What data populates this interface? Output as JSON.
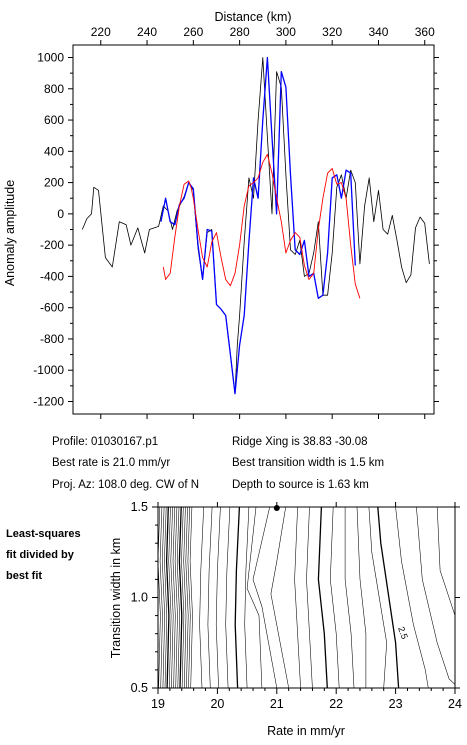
{
  "chart_data": [
    {
      "type": "line",
      "xlabel": "Distance (km)",
      "ylabel": "Anomaly amplitude",
      "xlim": [
        208,
        364
      ],
      "ylim": [
        -1280,
        1080
      ],
      "xticks": [
        220,
        240,
        260,
        280,
        300,
        320,
        340,
        360
      ],
      "yticks": [
        1000,
        800,
        600,
        400,
        200,
        0,
        -200,
        -400,
        -600,
        -800,
        -1000,
        -1200
      ],
      "x_axis_position": "top",
      "grid": false,
      "series": [
        {
          "name": "",
          "color": "#000000",
          "x": [
            212,
            214,
            216,
            217,
            219,
            222,
            225,
            228,
            231,
            233,
            236,
            239,
            241,
            245,
            247,
            249,
            251,
            253,
            255,
            256,
            258,
            260,
            262,
            264,
            266,
            268,
            270,
            272,
            274,
            276,
            278,
            279,
            280,
            282,
            284,
            286,
            288,
            290,
            292,
            294,
            296,
            298,
            300,
            302,
            304,
            306,
            308,
            310,
            312,
            314,
            316,
            318,
            320,
            322,
            324,
            326,
            328,
            330,
            332,
            334,
            336,
            338,
            340,
            342,
            344,
            346,
            348,
            350,
            352,
            354,
            356,
            358,
            360,
            362
          ],
          "y": [
            -100,
            -30,
            0,
            170,
            150,
            -280,
            -340,
            -50,
            -70,
            -200,
            -90,
            -250,
            -100,
            -80,
            50,
            20,
            -100,
            20,
            80,
            110,
            200,
            150,
            -220,
            -420,
            -120,
            -100,
            -580,
            -610,
            -650,
            -900,
            -1150,
            -840,
            -650,
            -180,
            230,
            100,
            600,
            1000,
            490,
            0,
            910,
            810,
            250,
            -230,
            -260,
            -170,
            -400,
            -380,
            -250,
            -50,
            -520,
            -520,
            -250,
            170,
            250,
            100,
            280,
            200,
            -320,
            50,
            230,
            -50,
            150,
            -100,
            -130,
            -10,
            -170,
            -340,
            -440,
            -390,
            -90,
            -20,
            -60,
            -320
          ]
        },
        {
          "name": "",
          "color": "#0000ff",
          "x": [
            246,
            248,
            250,
            252,
            254,
            256,
            258,
            260,
            262,
            264,
            266,
            268,
            270,
            272,
            274,
            276,
            278,
            280,
            282,
            284,
            286,
            288,
            290,
            292,
            294,
            296,
            298,
            300,
            302,
            304,
            306,
            308,
            310,
            312,
            314,
            316,
            318,
            320,
            322,
            324,
            326,
            328,
            330
          ],
          "y": [
            -50,
            100,
            -50,
            -70,
            60,
            100,
            200,
            160,
            -200,
            -420,
            -100,
            -110,
            -580,
            -610,
            -650,
            -900,
            -1150,
            -840,
            -650,
            -180,
            230,
            100,
            600,
            1000,
            490,
            0,
            910,
            810,
            250,
            -230,
            -260,
            -170,
            -400,
            -380,
            -540,
            -520,
            -250,
            230,
            250,
            100,
            280,
            260,
            -330
          ]
        },
        {
          "name": "",
          "color": "#ff0000",
          "x": [
            247,
            248,
            250,
            252,
            254,
            256,
            258,
            259,
            260,
            262,
            264,
            266,
            268,
            270,
            272,
            274,
            276,
            278,
            280,
            282,
            284,
            286,
            288,
            290,
            292,
            294,
            296,
            298,
            300,
            302,
            304,
            306,
            308,
            310,
            312,
            314,
            316,
            318,
            320,
            322,
            324,
            326,
            328,
            330,
            332
          ],
          "y": [
            -340,
            -420,
            -380,
            -150,
            50,
            190,
            210,
            170,
            100,
            -100,
            -280,
            -340,
            -180,
            -120,
            -280,
            -420,
            -460,
            -380,
            -200,
            50,
            180,
            200,
            230,
            330,
            380,
            260,
            100,
            -50,
            -250,
            -170,
            -120,
            -150,
            -330,
            -420,
            -380,
            -100,
            100,
            260,
            290,
            190,
            200,
            100,
            -200,
            -450,
            -540
          ]
        }
      ]
    },
    {
      "type": "contour",
      "xlabel": "Rate in mm/yr",
      "ylabel": "Transition width in km",
      "xlim": [
        19,
        24
      ],
      "ylim": [
        0.5,
        1.5
      ],
      "xticks": [
        19,
        20,
        21,
        22,
        23,
        24
      ],
      "yticks": [
        0.5,
        1.0,
        1.5
      ],
      "contour_labels": [
        "2.5"
      ],
      "best_fit_marker": {
        "x": 21.0,
        "y": 1.5
      }
    }
  ],
  "info": {
    "profile": "Profile: 01030167.p1",
    "best_rate": "Best rate is 21.0 mm/yr",
    "proj_az": "Proj. Az: 108.0 deg. CW of N",
    "ridge_xing": "Ridge Xing is 38.83 -30.08",
    "best_width": "Best transition width is 1.5 km",
    "depth": "Depth to source is   1.63 km"
  },
  "side_note": {
    "line1": "Least-squares",
    "line2": "fit divided by",
    "line3": "best fit"
  }
}
